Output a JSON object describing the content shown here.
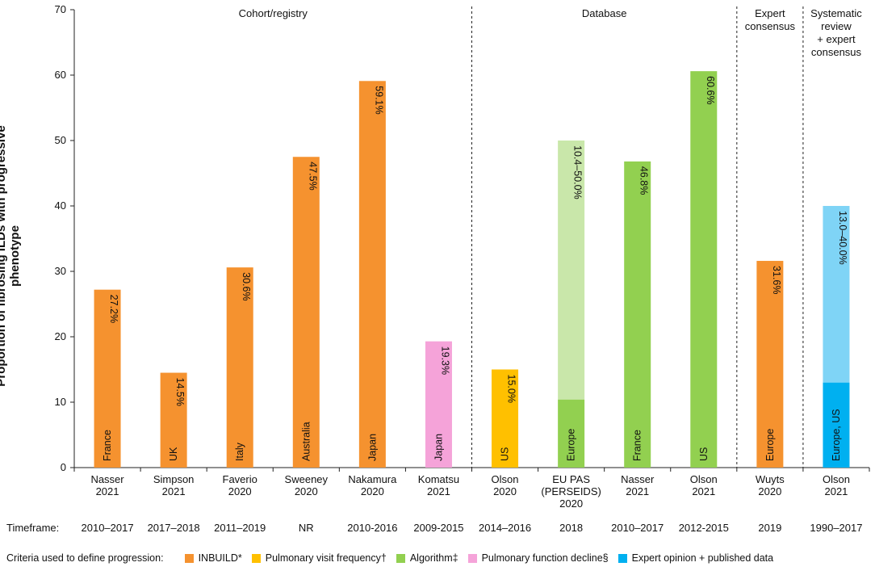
{
  "chart_data": {
    "type": "bar",
    "ylabel": "Proportion of fibrosing ILDs with progressive phenotype",
    "ylim": [
      0,
      70
    ],
    "yticks": [
      0,
      10,
      20,
      30,
      40,
      50,
      60,
      70
    ],
    "timeframe_label": "Timeframe:",
    "groups": [
      {
        "label": "Cohort/registry",
        "start": 0,
        "end": 5
      },
      {
        "label": "Database",
        "start": 6,
        "end": 9
      },
      {
        "label": "Expert\nconsensus",
        "start": 10,
        "end": 10
      },
      {
        "label": "Systematic\nreview\n+ expert\nconsensus",
        "start": 11,
        "end": 11
      }
    ],
    "bars": [
      {
        "study": "Nasser\n2021",
        "region": "France",
        "value": 27.2,
        "label": "27.2%",
        "criteria": "INBUILD",
        "timeframe": "2010–2017"
      },
      {
        "study": "Simpson\n2021",
        "region": "UK",
        "value": 14.5,
        "label": "14.5%",
        "criteria": "INBUILD",
        "timeframe": "2017–2018"
      },
      {
        "study": "Faverio\n2020",
        "region": "Italy",
        "value": 30.6,
        "label": "30.6%",
        "criteria": "INBUILD",
        "timeframe": "2011–2019"
      },
      {
        "study": "Sweeney\n2020",
        "region": "Australia",
        "value": 47.5,
        "label": "47.5%",
        "criteria": "INBUILD",
        "timeframe": "NR"
      },
      {
        "study": "Nakamura\n2020",
        "region": "Japan",
        "value": 59.1,
        "label": "59.1%",
        "criteria": "INBUILD",
        "timeframe": "2010-2016"
      },
      {
        "study": "Komatsu\n2021",
        "region": "Japan",
        "value": 19.3,
        "label": "19.3%",
        "criteria": "Pulmonary function decline",
        "timeframe": "2009-2015"
      },
      {
        "study": "Olson\n2020",
        "region": "US",
        "value": 15.0,
        "label": "15.0%",
        "criteria": "Pulmonary visit frequency",
        "timeframe": "2014–2016"
      },
      {
        "study": "EU PAS\n(PERSEIDS)\n2020",
        "region": "Europe",
        "value": 50.0,
        "low": 10.4,
        "label": "10.4–50.0%",
        "criteria": "Algorithm",
        "timeframe": "2018"
      },
      {
        "study": "Nasser\n2021",
        "region": "France",
        "value": 46.8,
        "label": "46.8%",
        "criteria": "Algorithm",
        "timeframe": "2010–2017"
      },
      {
        "study": "Olson\n2021",
        "region": "US",
        "value": 60.6,
        "label": "60.6%",
        "criteria": "Algorithm",
        "timeframe": "2012-2015"
      },
      {
        "study": "Wuyts\n2020",
        "region": "Europe",
        "value": 31.6,
        "label": "31.6%",
        "criteria": "INBUILD",
        "timeframe": "2019"
      },
      {
        "study": "Olson\n2021",
        "region": "Europe, US",
        "value": 40.0,
        "low": 13.0,
        "label": "13.0–40.0%",
        "criteria": "Expert opinion + published data",
        "timeframe": "1990–2017"
      }
    ],
    "colors": {
      "INBUILD": {
        "solid": "#F5922F"
      },
      "Pulmonary visit frequency": {
        "solid": "#FFC000"
      },
      "Algorithm": {
        "solid": "#92D050",
        "light": "#C9E7AA"
      },
      "Pulmonary function decline": {
        "solid": "#F5A3D9"
      },
      "Expert opinion + published data": {
        "solid": "#00B0F0",
        "light": "#7FD4F6"
      }
    }
  },
  "legend": {
    "lead": "Criteria used to define progression:",
    "items": [
      {
        "label": "INBUILD*",
        "color": "#F5922F"
      },
      {
        "label": "Pulmonary visit frequency†",
        "color": "#FFC000"
      },
      {
        "label": "Algorithm‡",
        "color": "#92D050"
      },
      {
        "label": "Pulmonary function decline§",
        "color": "#F5A3D9"
      },
      {
        "label": "Expert opinion + published data",
        "color": "#00B0F0"
      }
    ]
  }
}
